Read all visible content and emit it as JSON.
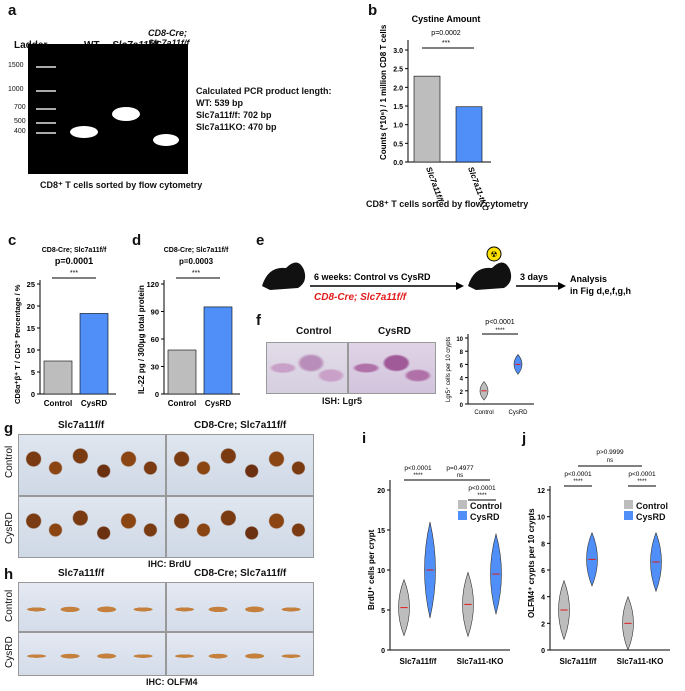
{
  "panels": {
    "a": {
      "letter": "a",
      "ladder_label": "Ladder",
      "lane_labels": [
        "WT",
        "Slc7a11f/f",
        "CD8-Cre;",
        "Slc7a11f/f"
      ],
      "ladder_sizes": [
        "1500",
        "1000",
        "700",
        "500",
        "400"
      ],
      "calc_title": "Calculated PCR product length:",
      "calc_lines": [
        "WT: 539 bp",
        "Slc7a11f/f: 702 bp",
        "Slc7a11KO: 470 bp"
      ],
      "caption": "CD8⁺ T cells sorted by flow cytometry"
    },
    "b": {
      "letter": "b",
      "title": "Cystine Amount",
      "pvalue": "p=0.0002",
      "stars": "***",
      "ylabel": "Counts (*10⁶) / 1 million CD8 T cells",
      "yticks": [
        "0.0",
        "0.5",
        "1.0",
        "1.5",
        "2.0",
        "2.5",
        "3.0"
      ],
      "xticks": [
        "Slc7a11f/f",
        "Slc7a11-tKO"
      ],
      "caption": "CD8⁺ T cells sorted by flow cytometry"
    },
    "c": {
      "letter": "c",
      "title": "CD8-Cre; Slc7a11f/f",
      "pvalue": "p=0.0001",
      "stars": "***",
      "ylabel": "CD8α⁺β⁺ T / CD3⁺ Percentage / %",
      "yticks": [
        "0",
        "5",
        "10",
        "15",
        "20",
        "25"
      ],
      "xticks": [
        "Control",
        "CysRD"
      ]
    },
    "d": {
      "letter": "d",
      "title": "CD8-Cre; Slc7a11f/f",
      "pvalue": "p=0.0003",
      "stars": "***",
      "ylabel": "IL-22 pg / 300μg total protein",
      "yticks": [
        "0",
        "30",
        "60",
        "90",
        "120"
      ],
      "xticks": [
        "Control",
        "CysRD"
      ]
    },
    "e": {
      "letter": "e",
      "step1": "6 weeks: Control vs CysRD",
      "genotype": "CD8-Cre; Slc7a11f/f",
      "step2": "3 days",
      "analysis_line1": "Analysis",
      "analysis_line2": "in Fig d,e,f,g,h"
    },
    "f": {
      "letter": "f",
      "col_labels": [
        "Control",
        "CysRD"
      ],
      "caption": "ISH: Lgr5",
      "pvalue": "p<0.0001",
      "stars": "****",
      "ylabel": "Lgr5⁺ cells per 10 crypts",
      "yticks": [
        "0",
        "2",
        "4",
        "6",
        "8",
        "10"
      ],
      "xticks": [
        "Control",
        "CysRD"
      ]
    },
    "g": {
      "letter": "g",
      "col_labels": [
        "Slc7a11f/f",
        "CD8-Cre; Slc7a11f/f"
      ],
      "row_labels": [
        "Control",
        "CysRD"
      ],
      "caption": "IHC: BrdU"
    },
    "h": {
      "letter": "h",
      "col_labels": [
        "Slc7a11f/f",
        "CD8-Cre; Slc7a11f/f"
      ],
      "row_labels": [
        "Control",
        "CysRD"
      ],
      "caption": "IHC: OLFM4"
    },
    "i": {
      "letter": "i",
      "ylabel": "BrdU⁺ cells per crypt",
      "yticks": [
        "0",
        "5",
        "10",
        "15",
        "20"
      ],
      "xticks": [
        "Slc7a11f/f",
        "Slc7a11-tKO"
      ],
      "legend": [
        "Control",
        "CysRD"
      ],
      "comparisons": [
        {
          "p": "p<0.0001",
          "s": "****"
        },
        {
          "p": "p=0.4977",
          "s": "ns"
        },
        {
          "p": "p<0.0001",
          "s": "****"
        }
      ]
    },
    "j": {
      "letter": "j",
      "ylabel": "OLFM4⁺ crypts per 10 crypts",
      "yticks": [
        "0",
        "2",
        "4",
        "6",
        "8",
        "10",
        "12"
      ],
      "xticks": [
        "Slc7a11f/f",
        "Slc7a11-tKO"
      ],
      "legend": [
        "Control",
        "CysRD"
      ],
      "comparisons": [
        {
          "p": "p>0.9999",
          "s": "ns"
        },
        {
          "p": "p<0.0001",
          "s": "****"
        },
        {
          "p": "p<0.0001",
          "s": "****"
        }
      ]
    }
  },
  "colors": {
    "control": "#bdbdbd",
    "cysrd": "#4f8ff7",
    "red": "#e21b1b",
    "dot": "#111111"
  },
  "chart_data": [
    {
      "type": "bar",
      "id": "b",
      "title": "Cystine Amount",
      "categories": [
        "Slc7a11f/f",
        "Slc7a11-tKO"
      ],
      "values": [
        2.3,
        1.48
      ],
      "ylim": [
        0,
        3.0
      ],
      "ylabel": "Counts (*10⁶) / 1 million CD8 T cells"
    },
    {
      "type": "bar",
      "id": "c",
      "categories": [
        "Control",
        "CysRD"
      ],
      "values": [
        7.5,
        18.3
      ],
      "ylim": [
        0,
        25
      ],
      "ylabel": "CD8α⁺β⁺ T / CD3⁺ Percentage / %"
    },
    {
      "type": "bar",
      "id": "d",
      "categories": [
        "Control",
        "CysRD"
      ],
      "values": [
        48,
        95
      ],
      "ylim": [
        0,
        120
      ],
      "ylabel": "IL-22 pg / 300μg total protein"
    },
    {
      "type": "violin",
      "id": "f",
      "categories": [
        "Control",
        "CysRD"
      ],
      "medians": [
        2,
        6
      ],
      "ylim": [
        0,
        10
      ],
      "ylabel": "Lgr5⁺ cells per 10 crypts"
    },
    {
      "type": "violin",
      "id": "i",
      "categories": [
        "Slc7a11f/f",
        "Slc7a11-tKO"
      ],
      "series": [
        {
          "name": "Control",
          "medians": [
            5.3,
            5.7
          ]
        },
        {
          "name": "CysRD",
          "medians": [
            10,
            9.5
          ]
        }
      ],
      "ylim": [
        0,
        20
      ],
      "ylabel": "BrdU⁺ cells per crypt"
    },
    {
      "type": "violin",
      "id": "j",
      "categories": [
        "Slc7a11f/f",
        "Slc7a11-tKO"
      ],
      "series": [
        {
          "name": "Control",
          "medians": [
            3,
            2
          ]
        },
        {
          "name": "CysRD",
          "medians": [
            6.8,
            6.6
          ]
        }
      ],
      "ylim": [
        0,
        12
      ],
      "ylabel": "OLFM4⁺ crypts per 10 crypts"
    }
  ]
}
